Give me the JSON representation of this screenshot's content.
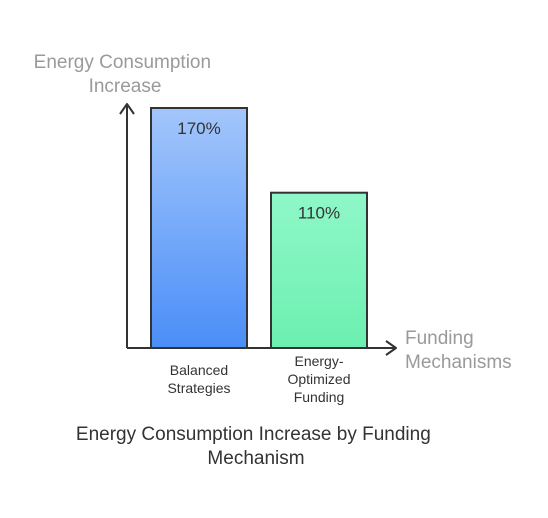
{
  "chart_data": {
    "type": "bar",
    "title": "Energy Consumption Increase by Funding Mechanism",
    "ylabel": "Energy Consumption Increase",
    "xlabel": "Funding Mechanisms",
    "categories": [
      "Balanced Strategies",
      "Energy-Optimized Funding"
    ],
    "values": [
      170,
      110
    ],
    "value_labels": [
      "170%",
      "110%"
    ],
    "unit": "%",
    "ylim": [
      0,
      170
    ],
    "grid": false,
    "colors": {
      "bars": [
        {
          "top": "#a3c6fb",
          "bottom": "#4a8ef8"
        },
        {
          "top": "#8ff7c8",
          "bottom": "#6cf0b0"
        }
      ],
      "axis": "#333333",
      "axis_title": "#9a9a9a"
    }
  }
}
